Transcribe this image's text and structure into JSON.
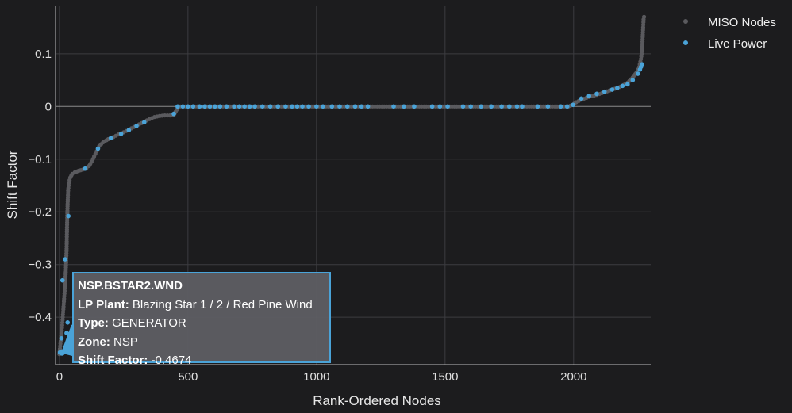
{
  "chart_data": {
    "type": "scatter",
    "xlabel": "Rank-Ordered Nodes",
    "ylabel": "Shift Factor",
    "xlim": [
      -15,
      2300
    ],
    "ylim": [
      -0.49,
      0.19
    ],
    "x_ticks": [
      0,
      500,
      1000,
      1500,
      2000
    ],
    "y_ticks": [
      0.1,
      0,
      -0.1,
      -0.2,
      -0.3,
      -0.4
    ],
    "y_tick_labels": [
      "0.1",
      "0",
      "−0.1",
      "−0.2",
      "−0.3",
      "−0.4"
    ],
    "grid": true,
    "legend_position": "top-right",
    "colors": {
      "background": "#1c1c1e",
      "grid": "#3c3c40",
      "zero_line": "#8a8a8a",
      "miso_nodes": "#5a5a5e",
      "live_power": "#4aa3d8"
    },
    "series": [
      {
        "name": "MISO Nodes",
        "description_points": [
          [
            0,
            -0.47
          ],
          [
            3,
            -0.455
          ],
          [
            6,
            -0.44
          ],
          [
            10,
            -0.42
          ],
          [
            13,
            -0.4
          ],
          [
            16,
            -0.38
          ],
          [
            19,
            -0.36
          ],
          [
            22,
            -0.34
          ],
          [
            25,
            -0.31
          ],
          [
            28,
            -0.27
          ],
          [
            30,
            -0.22
          ],
          [
            32,
            -0.185
          ],
          [
            34,
            -0.16
          ],
          [
            37,
            -0.145
          ],
          [
            42,
            -0.135
          ],
          [
            50,
            -0.128
          ],
          [
            60,
            -0.125
          ],
          [
            75,
            -0.122
          ],
          [
            90,
            -0.12
          ],
          [
            105,
            -0.117
          ],
          [
            115,
            -0.113
          ],
          [
            125,
            -0.105
          ],
          [
            135,
            -0.095
          ],
          [
            145,
            -0.085
          ],
          [
            155,
            -0.075
          ],
          [
            170,
            -0.068
          ],
          [
            190,
            -0.062
          ],
          [
            210,
            -0.058
          ],
          [
            230,
            -0.053
          ],
          [
            250,
            -0.049
          ],
          [
            270,
            -0.044
          ],
          [
            290,
            -0.039
          ],
          [
            310,
            -0.034
          ],
          [
            330,
            -0.029
          ],
          [
            350,
            -0.024
          ],
          [
            370,
            -0.02
          ],
          [
            390,
            -0.018
          ],
          [
            410,
            -0.017
          ],
          [
            430,
            -0.017
          ],
          [
            445,
            -0.016
          ],
          [
            452,
            -0.01
          ],
          [
            460,
            -0.003
          ],
          [
            470,
            0.0
          ],
          [
            500,
            0.0
          ],
          [
            600,
            0.0
          ],
          [
            700,
            0.0
          ],
          [
            800,
            0.0
          ],
          [
            900,
            0.0
          ],
          [
            1000,
            0.0
          ],
          [
            1100,
            0.0
          ],
          [
            1200,
            0.0
          ],
          [
            1300,
            0.0
          ],
          [
            1400,
            0.0
          ],
          [
            1500,
            0.0
          ],
          [
            1600,
            0.0
          ],
          [
            1700,
            0.0
          ],
          [
            1800,
            0.0
          ],
          [
            1900,
            0.0
          ],
          [
            1980,
            0.0
          ],
          [
            1995,
            0.003
          ],
          [
            2010,
            0.008
          ],
          [
            2030,
            0.013
          ],
          [
            2060,
            0.018
          ],
          [
            2090,
            0.022
          ],
          [
            2120,
            0.027
          ],
          [
            2150,
            0.032
          ],
          [
            2180,
            0.037
          ],
          [
            2210,
            0.045
          ],
          [
            2230,
            0.055
          ],
          [
            2245,
            0.065
          ],
          [
            2255,
            0.075
          ],
          [
            2262,
            0.09
          ],
          [
            2266,
            0.105
          ],
          [
            2270,
            0.145
          ],
          [
            2272,
            0.165
          ],
          [
            2274,
            0.17
          ]
        ]
      },
      {
        "name": "Live Power",
        "points": [
          [
            2,
            -0.467
          ],
          [
            8,
            -0.44
          ],
          [
            12,
            -0.33
          ],
          [
            22,
            -0.29
          ],
          [
            28,
            -0.43
          ],
          [
            32,
            -0.41
          ],
          [
            35,
            -0.208
          ],
          [
            100,
            -0.118
          ],
          [
            150,
            -0.08
          ],
          [
            200,
            -0.06
          ],
          [
            240,
            -0.052
          ],
          [
            270,
            -0.045
          ],
          [
            300,
            -0.037
          ],
          [
            330,
            -0.03
          ],
          [
            445,
            -0.014
          ],
          [
            460,
            0.0
          ],
          [
            480,
            0.0
          ],
          [
            500,
            0.0
          ],
          [
            520,
            0.0
          ],
          [
            545,
            0.0
          ],
          [
            565,
            0.0
          ],
          [
            585,
            0.0
          ],
          [
            605,
            0.0
          ],
          [
            625,
            0.0
          ],
          [
            650,
            0.0
          ],
          [
            680,
            0.0
          ],
          [
            700,
            0.0
          ],
          [
            720,
            0.0
          ],
          [
            740,
            0.0
          ],
          [
            760,
            0.0
          ],
          [
            790,
            0.0
          ],
          [
            820,
            0.0
          ],
          [
            850,
            0.0
          ],
          [
            880,
            0.0
          ],
          [
            905,
            0.0
          ],
          [
            925,
            0.0
          ],
          [
            945,
            0.0
          ],
          [
            970,
            0.0
          ],
          [
            1000,
            0.0
          ],
          [
            1025,
            0.0
          ],
          [
            1060,
            0.0
          ],
          [
            1090,
            0.0
          ],
          [
            1120,
            0.0
          ],
          [
            1150,
            0.0
          ],
          [
            1175,
            0.0
          ],
          [
            1200,
            0.0
          ],
          [
            1300,
            0.0
          ],
          [
            1340,
            0.0
          ],
          [
            1380,
            0.0
          ],
          [
            1450,
            0.0
          ],
          [
            1480,
            0.0
          ],
          [
            1510,
            0.0
          ],
          [
            1570,
            0.0
          ],
          [
            1600,
            0.0
          ],
          [
            1640,
            0.0
          ],
          [
            1680,
            0.0
          ],
          [
            1720,
            0.0
          ],
          [
            1750,
            0.0
          ],
          [
            1780,
            0.0
          ],
          [
            1800,
            0.0
          ],
          [
            1860,
            0.0
          ],
          [
            1900,
            0.0
          ],
          [
            1950,
            0.0
          ],
          [
            1975,
            0.0
          ],
          [
            1998,
            0.003
          ],
          [
            2030,
            0.015
          ],
          [
            2060,
            0.02
          ],
          [
            2090,
            0.024
          ],
          [
            2120,
            0.028
          ],
          [
            2150,
            0.032
          ],
          [
            2170,
            0.035
          ],
          [
            2190,
            0.039
          ],
          [
            2210,
            0.042
          ],
          [
            2230,
            0.05
          ],
          [
            2250,
            0.062
          ],
          [
            2258,
            0.07
          ],
          [
            2262,
            0.075
          ],
          [
            2266,
            0.08
          ]
        ]
      }
    ],
    "highlight_point": [
      10,
      -0.467
    ]
  },
  "tooltip": {
    "node": "NSP.BSTAR2.WND",
    "lp_plant_label": "LP Plant:",
    "lp_plant_value": " Blazing Star 1 / 2 / Red Pine Wind",
    "type_label": "Type:",
    "type_value": " GENERATOR",
    "zone_label": "Zone:",
    "zone_value": " NSP",
    "shift_factor_label": "Shift Factor:",
    "shift_factor_value": " -0.4674"
  }
}
